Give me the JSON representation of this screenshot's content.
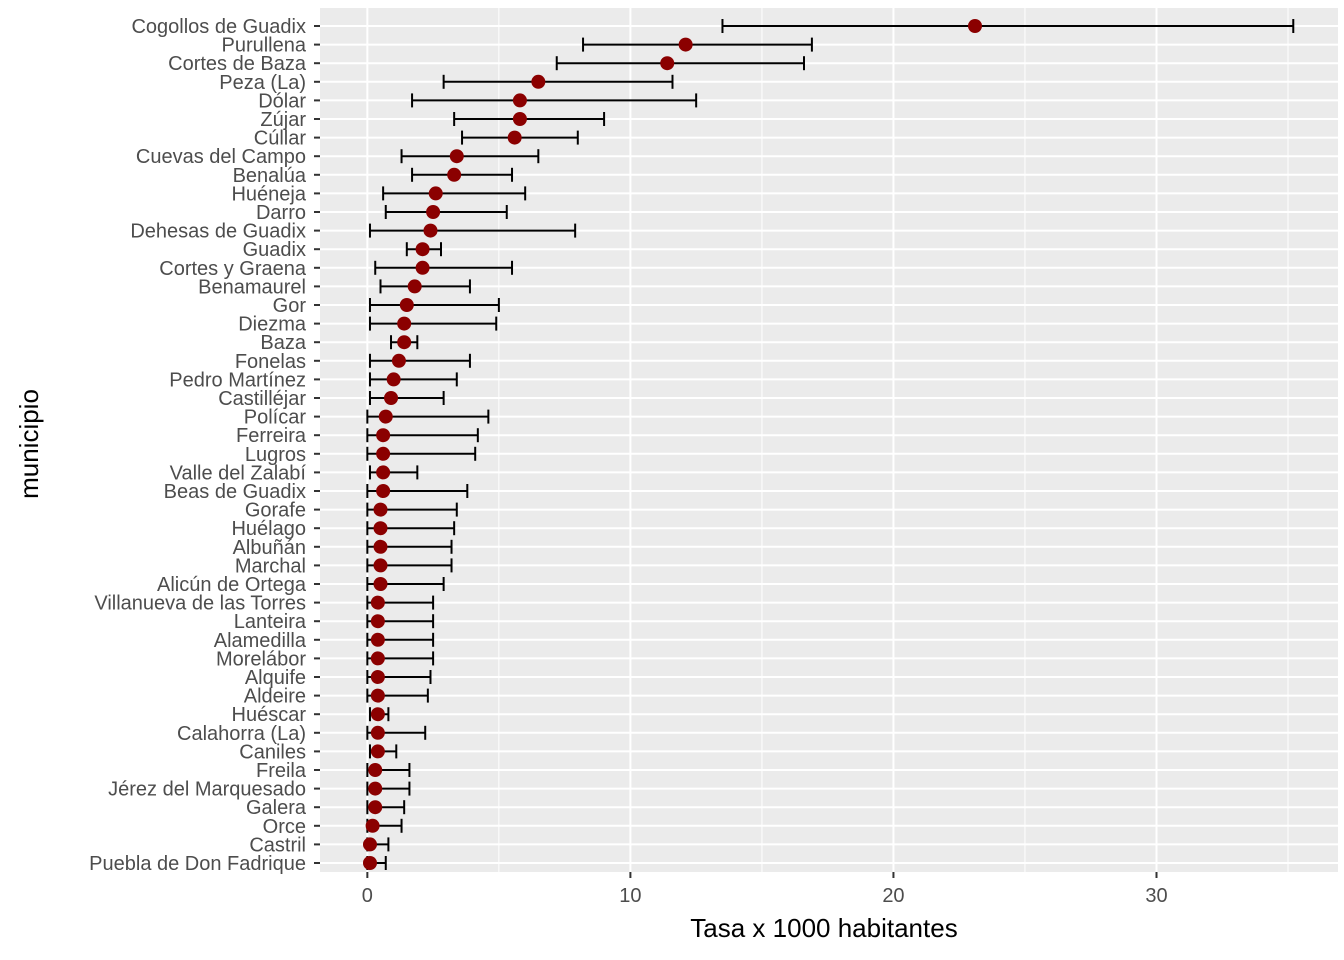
{
  "chart_data": {
    "type": "dot-errorbar",
    "xlabel": "Tasa x 1000 habitantes",
    "ylabel": "municipio",
    "xlim": [
      -1.8,
      36.9
    ],
    "x_ticks": [
      0,
      10,
      20,
      30
    ],
    "x_tick_labels": [
      "0",
      "10",
      "20",
      "30"
    ],
    "grid": true,
    "colors": {
      "panel": "#ebebeb",
      "grid": "#ffffff",
      "point": "#8b0000",
      "errorbar": "#000000"
    },
    "series": [
      {
        "municipio": "Cogollos de Guadix",
        "tasa": 23.1,
        "lower": 13.5,
        "upper": 35.2
      },
      {
        "municipio": "Purullena",
        "tasa": 12.1,
        "lower": 8.2,
        "upper": 16.9
      },
      {
        "municipio": "Cortes de Baza",
        "tasa": 11.4,
        "lower": 7.2,
        "upper": 16.6
      },
      {
        "municipio": "Peza (La)",
        "tasa": 6.5,
        "lower": 2.9,
        "upper": 11.6
      },
      {
        "municipio": "Dólar",
        "tasa": 5.8,
        "lower": 1.7,
        "upper": 12.5
      },
      {
        "municipio": "Zújar",
        "tasa": 5.8,
        "lower": 3.3,
        "upper": 9.0
      },
      {
        "municipio": "Cúllar",
        "tasa": 5.6,
        "lower": 3.6,
        "upper": 8.0
      },
      {
        "municipio": "Cuevas del Campo",
        "tasa": 3.4,
        "lower": 1.3,
        "upper": 6.5
      },
      {
        "municipio": "Benalúa",
        "tasa": 3.3,
        "lower": 1.7,
        "upper": 5.5
      },
      {
        "municipio": "Huéneja",
        "tasa": 2.6,
        "lower": 0.6,
        "upper": 6.0
      },
      {
        "municipio": "Darro",
        "tasa": 2.5,
        "lower": 0.7,
        "upper": 5.3
      },
      {
        "municipio": "Dehesas de Guadix",
        "tasa": 2.4,
        "lower": 0.1,
        "upper": 7.9
      },
      {
        "municipio": "Guadix",
        "tasa": 2.1,
        "lower": 1.5,
        "upper": 2.8
      },
      {
        "municipio": "Cortes y Graena",
        "tasa": 2.1,
        "lower": 0.3,
        "upper": 5.5
      },
      {
        "municipio": "Benamaurel",
        "tasa": 1.8,
        "lower": 0.5,
        "upper": 3.9
      },
      {
        "municipio": "Gor",
        "tasa": 1.5,
        "lower": 0.1,
        "upper": 5.0
      },
      {
        "municipio": "Diezma",
        "tasa": 1.4,
        "lower": 0.1,
        "upper": 4.9
      },
      {
        "municipio": "Baza",
        "tasa": 1.4,
        "lower": 0.9,
        "upper": 1.9
      },
      {
        "municipio": "Fonelas",
        "tasa": 1.2,
        "lower": 0.1,
        "upper": 3.9
      },
      {
        "municipio": "Pedro Martínez",
        "tasa": 1.0,
        "lower": 0.1,
        "upper": 3.4
      },
      {
        "municipio": "Castilléjar",
        "tasa": 0.9,
        "lower": 0.1,
        "upper": 2.9
      },
      {
        "municipio": "Polícar",
        "tasa": 0.7,
        "lower": 0.0,
        "upper": 4.6
      },
      {
        "municipio": "Ferreira",
        "tasa": 0.6,
        "lower": 0.0,
        "upper": 4.2
      },
      {
        "municipio": "Lugros",
        "tasa": 0.6,
        "lower": 0.0,
        "upper": 4.1
      },
      {
        "municipio": "Valle del Zalabí",
        "tasa": 0.6,
        "lower": 0.1,
        "upper": 1.9
      },
      {
        "municipio": "Beas de Guadix",
        "tasa": 0.6,
        "lower": 0.0,
        "upper": 3.8
      },
      {
        "municipio": "Gorafe",
        "tasa": 0.5,
        "lower": 0.0,
        "upper": 3.4
      },
      {
        "municipio": "Huélago",
        "tasa": 0.5,
        "lower": 0.0,
        "upper": 3.3
      },
      {
        "municipio": "Albuñán",
        "tasa": 0.5,
        "lower": 0.0,
        "upper": 3.2
      },
      {
        "municipio": "Marchal",
        "tasa": 0.5,
        "lower": 0.0,
        "upper": 3.2
      },
      {
        "municipio": "Alicún de Ortega",
        "tasa": 0.5,
        "lower": 0.0,
        "upper": 2.9
      },
      {
        "municipio": "Villanueva de las Torres",
        "tasa": 0.4,
        "lower": 0.0,
        "upper": 2.5
      },
      {
        "municipio": "Lanteira",
        "tasa": 0.4,
        "lower": 0.0,
        "upper": 2.5
      },
      {
        "municipio": "Alamedilla",
        "tasa": 0.4,
        "lower": 0.0,
        "upper": 2.5
      },
      {
        "municipio": "Morelábor",
        "tasa": 0.4,
        "lower": 0.0,
        "upper": 2.5
      },
      {
        "municipio": "Alquife",
        "tasa": 0.4,
        "lower": 0.0,
        "upper": 2.4
      },
      {
        "municipio": "Aldeire",
        "tasa": 0.4,
        "lower": 0.0,
        "upper": 2.3
      },
      {
        "municipio": "Huéscar",
        "tasa": 0.4,
        "lower": 0.1,
        "upper": 0.8
      },
      {
        "municipio": "Calahorra (La)",
        "tasa": 0.4,
        "lower": 0.0,
        "upper": 2.2
      },
      {
        "municipio": "Caniles",
        "tasa": 0.4,
        "lower": 0.1,
        "upper": 1.1
      },
      {
        "municipio": "Freila",
        "tasa": 0.3,
        "lower": 0.0,
        "upper": 1.6
      },
      {
        "municipio": "Jérez del Marquesado",
        "tasa": 0.3,
        "lower": 0.0,
        "upper": 1.6
      },
      {
        "municipio": "Galera",
        "tasa": 0.3,
        "lower": 0.0,
        "upper": 1.4
      },
      {
        "municipio": "Orce",
        "tasa": 0.2,
        "lower": 0.0,
        "upper": 1.3
      },
      {
        "municipio": "Castril",
        "tasa": 0.1,
        "lower": 0.0,
        "upper": 0.8
      },
      {
        "municipio": "Puebla de Don Fadrique",
        "tasa": 0.1,
        "lower": 0.0,
        "upper": 0.7
      }
    ]
  }
}
